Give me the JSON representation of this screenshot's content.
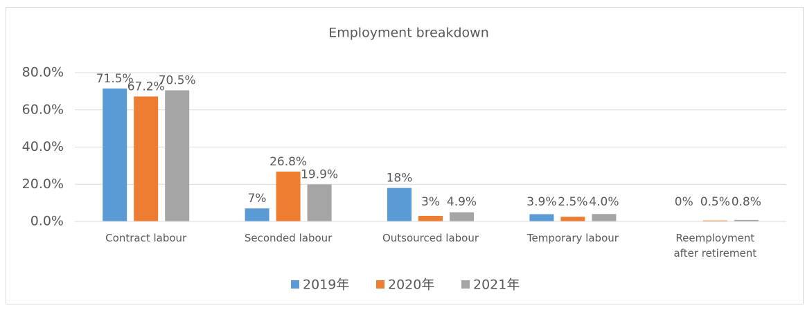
{
  "chart_data": {
    "type": "bar",
    "title": "Employment breakdown",
    "categories": [
      "Contract labour",
      "Seconded labour",
      "Outsourced labour",
      "Temporary labour",
      "Reemployment after retirement"
    ],
    "series": [
      {
        "name": "2019年",
        "color": "#5b9bd5",
        "values": [
          71.5,
          7,
          18,
          3.9,
          0
        ],
        "value_labels": [
          "71.5%",
          "7%",
          "18%",
          "3.9%",
          "0%"
        ]
      },
      {
        "name": "2020年",
        "color": "#ed7d31",
        "values": [
          67.2,
          26.8,
          3,
          2.5,
          0.5
        ],
        "value_labels": [
          "67.2%",
          "26.8%",
          "3%",
          "2.5%",
          "0.5%"
        ]
      },
      {
        "name": "2021年",
        "color": "#a5a5a5",
        "values": [
          70.5,
          19.9,
          4.9,
          4.0,
          0.8
        ],
        "value_labels": [
          "70.5%",
          "19.9%",
          "4.9%",
          "4.0%",
          "0.8%"
        ]
      }
    ],
    "ylim": [
      0,
      80
    ],
    "yticks": [
      {
        "value": 0,
        "label": "0.0%"
      },
      {
        "value": 20,
        "label": "20.0%"
      },
      {
        "value": 40,
        "label": "40.0%"
      },
      {
        "value": 60,
        "label": "60.0%"
      },
      {
        "value": 80,
        "label": "80.0%"
      }
    ],
    "grid": true,
    "legend": "bottom"
  }
}
